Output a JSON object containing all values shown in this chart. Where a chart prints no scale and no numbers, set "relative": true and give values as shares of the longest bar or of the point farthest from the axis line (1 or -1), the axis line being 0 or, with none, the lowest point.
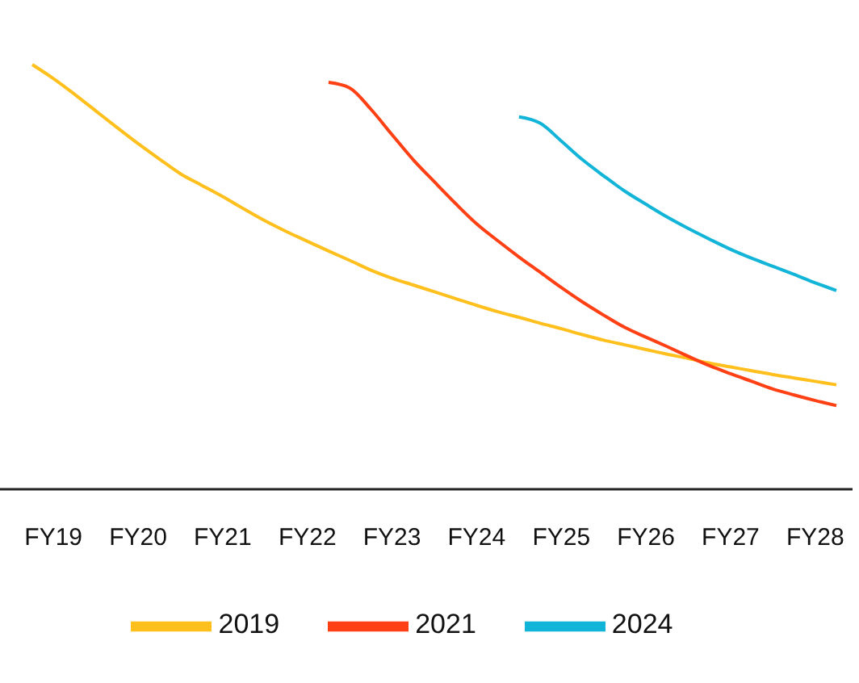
{
  "chart_data": {
    "type": "line",
    "relative": true,
    "legend": "bottom",
    "tick_labels": "x",
    "categories": [
      null,
      "FY19",
      null,
      null,
      null,
      "FY20",
      null,
      null,
      null,
      "FY21",
      null,
      null,
      null,
      "FY22",
      null,
      null,
      null,
      "FY23",
      null,
      null,
      null,
      "FY24",
      null,
      null,
      null,
      "FY25",
      null,
      null,
      null,
      "FY26",
      null,
      null,
      null,
      "FY27",
      null,
      null,
      null,
      "FY28",
      null
    ],
    "series": [
      {
        "name": "2019",
        "color": "#ffc01e",
        "values": [
          1.0,
          0.967,
          0.93,
          0.891,
          0.852,
          0.814,
          0.778,
          0.743,
          0.716,
          0.689,
          0.66,
          0.632,
          0.607,
          0.584,
          0.561,
          0.539,
          0.516,
          0.497,
          0.481,
          0.465,
          0.449,
          0.433,
          0.418,
          0.405,
          0.391,
          0.378,
          0.364,
          0.351,
          0.34,
          0.329,
          0.318,
          0.308,
          0.297,
          0.288,
          0.279,
          0.27,
          0.262,
          0.254,
          0.246
        ]
      },
      {
        "name": "2021",
        "color": "#ff4014",
        "values": [
          null,
          null,
          null,
          null,
          null,
          null,
          null,
          null,
          null,
          null,
          null,
          null,
          null,
          null,
          0.958,
          0.945,
          0.895,
          0.835,
          0.776,
          0.724,
          0.673,
          0.625,
          0.585,
          0.547,
          0.511,
          0.475,
          0.441,
          0.41,
          0.381,
          0.358,
          0.336,
          0.313,
          0.291,
          0.272,
          0.254,
          0.236,
          0.222,
          0.209,
          0.197
        ]
      },
      {
        "name": "2024",
        "color": "#12b4d8",
        "values": [
          null,
          null,
          null,
          null,
          null,
          null,
          null,
          null,
          null,
          null,
          null,
          null,
          null,
          null,
          null,
          null,
          null,
          null,
          null,
          null,
          null,
          null,
          null,
          0.877,
          0.862,
          0.82,
          0.776,
          0.738,
          0.702,
          0.671,
          0.641,
          0.614,
          0.589,
          0.565,
          0.544,
          0.525,
          0.506,
          0.486,
          0.468
        ]
      }
    ]
  }
}
